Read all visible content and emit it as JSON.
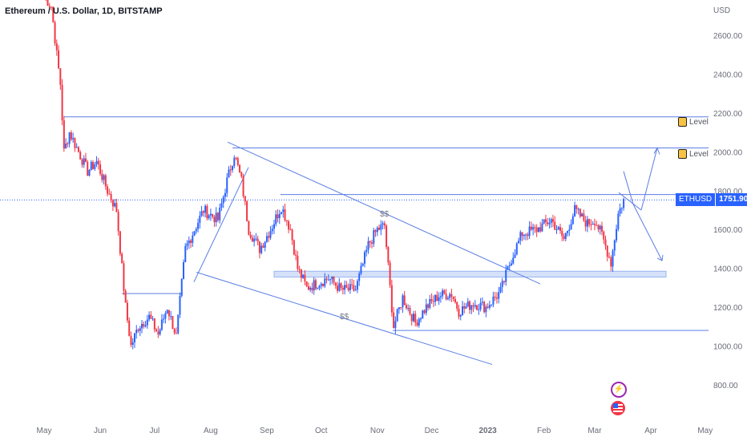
{
  "header": {
    "title": "Ethereum / U.S. Dollar, 1D, BITSTAMP"
  },
  "axis": {
    "currency_label": "USD"
  },
  "colors": {
    "up": "#2962ff",
    "down": "#f23645",
    "line": "#5b7ee5",
    "band": "#c9d9f8",
    "badge": "#2962ff"
  },
  "price_badge": {
    "symbol": "ETHUSD",
    "price": "1751.90"
  },
  "annotations": {
    "level_labels": [
      "Level",
      "Level"
    ],
    "liquidity_labels": [
      "$$",
      "$$"
    ]
  },
  "chart_data": {
    "type": "candlestick",
    "title": "Ethereum / U.S. Dollar, 1D, BITSTAMP",
    "ylabel": "USD",
    "ylim": [
      700,
      2800
    ],
    "y_ticks": [
      "2600.00",
      "2400.00",
      "2200.00",
      "2000.00",
      "1800.00",
      "1600.00",
      "1400.00",
      "1200.00",
      "1000.00",
      "800.00"
    ],
    "x_ticks": [
      "May",
      "Jun",
      "Jul",
      "Aug",
      "Sep",
      "Oct",
      "Nov",
      "Dec",
      "2023",
      "Feb",
      "Mar",
      "Apr",
      "May"
    ],
    "price_series": [
      {
        "date": "2022-05-01",
        "close": 2800
      },
      {
        "date": "2022-05-05",
        "close": 2750
      },
      {
        "date": "2022-05-08",
        "close": 2500
      },
      {
        "date": "2022-05-10",
        "close": 2350
      },
      {
        "date": "2022-05-12",
        "close": 2000
      },
      {
        "date": "2022-05-15",
        "close": 2100
      },
      {
        "date": "2022-05-20",
        "close": 2000
      },
      {
        "date": "2022-05-25",
        "close": 1900
      },
      {
        "date": "2022-05-30",
        "close": 1950
      },
      {
        "date": "2022-06-05",
        "close": 1800
      },
      {
        "date": "2022-06-10",
        "close": 1700
      },
      {
        "date": "2022-06-13",
        "close": 1400
      },
      {
        "date": "2022-06-15",
        "close": 1200
      },
      {
        "date": "2022-06-18",
        "close": 1000
      },
      {
        "date": "2022-06-22",
        "close": 1100
      },
      {
        "date": "2022-06-28",
        "close": 1150
      },
      {
        "date": "2022-07-03",
        "close": 1060
      },
      {
        "date": "2022-07-08",
        "close": 1200
      },
      {
        "date": "2022-07-13",
        "close": 1050
      },
      {
        "date": "2022-07-18",
        "close": 1500
      },
      {
        "date": "2022-07-23",
        "close": 1600
      },
      {
        "date": "2022-07-28",
        "close": 1700
      },
      {
        "date": "2022-08-05",
        "close": 1650
      },
      {
        "date": "2022-08-10",
        "close": 1850
      },
      {
        "date": "2022-08-14",
        "close": 1990
      },
      {
        "date": "2022-08-18",
        "close": 1850
      },
      {
        "date": "2022-08-22",
        "close": 1600
      },
      {
        "date": "2022-08-28",
        "close": 1500
      },
      {
        "date": "2022-09-03",
        "close": 1600
      },
      {
        "date": "2022-09-09",
        "close": 1720
      },
      {
        "date": "2022-09-14",
        "close": 1600
      },
      {
        "date": "2022-09-18",
        "close": 1400
      },
      {
        "date": "2022-09-23",
        "close": 1300
      },
      {
        "date": "2022-09-28",
        "close": 1320
      },
      {
        "date": "2022-10-05",
        "close": 1350
      },
      {
        "date": "2022-10-12",
        "close": 1290
      },
      {
        "date": "2022-10-20",
        "close": 1290
      },
      {
        "date": "2022-10-27",
        "close": 1520
      },
      {
        "date": "2022-11-01",
        "close": 1600
      },
      {
        "date": "2022-11-05",
        "close": 1620
      },
      {
        "date": "2022-11-08",
        "close": 1300
      },
      {
        "date": "2022-11-10",
        "close": 1100
      },
      {
        "date": "2022-11-15",
        "close": 1250
      },
      {
        "date": "2022-11-22",
        "close": 1120
      },
      {
        "date": "2022-11-28",
        "close": 1200
      },
      {
        "date": "2022-12-05",
        "close": 1260
      },
      {
        "date": "2022-12-12",
        "close": 1270
      },
      {
        "date": "2022-12-16",
        "close": 1180
      },
      {
        "date": "2022-12-24",
        "close": 1220
      },
      {
        "date": "2022-12-31",
        "close": 1200
      },
      {
        "date": "2023-01-08",
        "close": 1280
      },
      {
        "date": "2023-01-14",
        "close": 1450
      },
      {
        "date": "2023-01-20",
        "close": 1580
      },
      {
        "date": "2023-01-28",
        "close": 1600
      },
      {
        "date": "2023-02-05",
        "close": 1650
      },
      {
        "date": "2023-02-12",
        "close": 1550
      },
      {
        "date": "2023-02-18",
        "close": 1700
      },
      {
        "date": "2023-02-25",
        "close": 1630
      },
      {
        "date": "2023-03-01",
        "close": 1650
      },
      {
        "date": "2023-03-05",
        "close": 1570
      },
      {
        "date": "2023-03-10",
        "close": 1430
      },
      {
        "date": "2023-03-14",
        "close": 1680
      },
      {
        "date": "2023-03-17",
        "close": 1752
      }
    ],
    "horizontal_levels": [
      2180,
      2020,
      1780,
      1080
    ],
    "zone": [
      1355,
      1385
    ],
    "current_price": 1751.9
  }
}
